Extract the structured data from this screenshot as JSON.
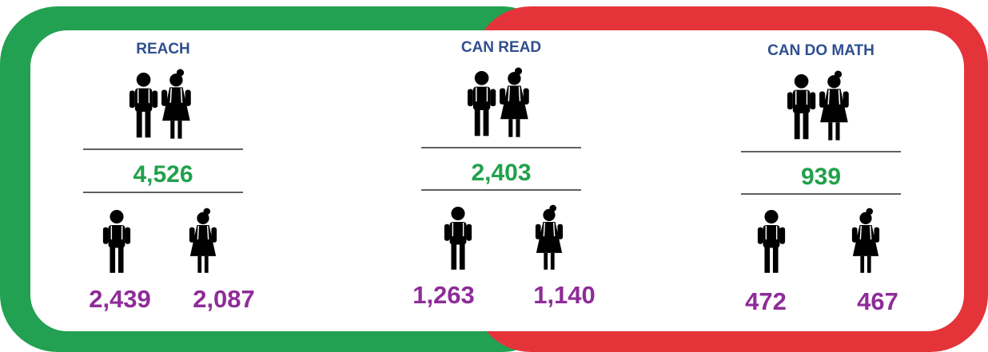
{
  "sections": [
    {
      "title": "REACH",
      "total": "4,526",
      "boys": "2,439",
      "girls": "2,087"
    },
    {
      "title": "CAN READ",
      "total": "2,403",
      "boys": "1,263",
      "girls": "1,140"
    },
    {
      "title": "CAN DO MATH",
      "total": "939",
      "boys": "472",
      "girls": "467"
    }
  ]
}
